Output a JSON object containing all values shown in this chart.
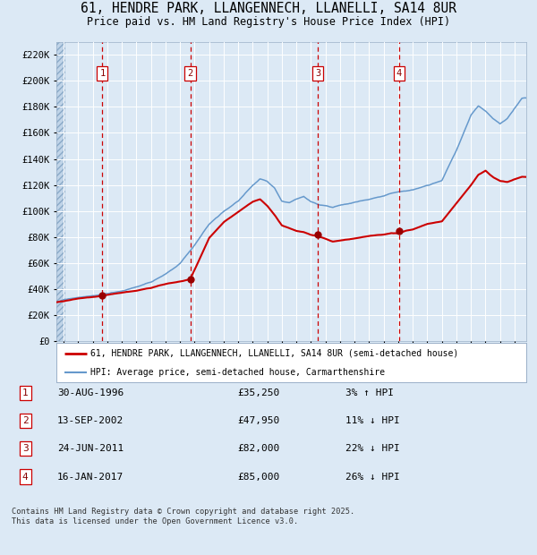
{
  "title_line1": "61, HENDRE PARK, LLANGENNECH, LLANELLI, SA14 8UR",
  "title_line2": "Price paid vs. HM Land Registry's House Price Index (HPI)",
  "background_color": "#dce9f5",
  "plot_bg_color": "#dce9f5",
  "grid_color": "#ffffff",
  "red_line_color": "#cc0000",
  "blue_line_color": "#6699cc",
  "dashed_line_color": "#cc0000",
  "marker_color": "#990000",
  "transactions": [
    {
      "date_x": 1996.66,
      "price": 35250,
      "label": "1"
    },
    {
      "date_x": 2002.7,
      "price": 47950,
      "label": "2"
    },
    {
      "date_x": 2011.48,
      "price": 82000,
      "label": "3"
    },
    {
      "date_x": 2017.04,
      "price": 85000,
      "label": "4"
    }
  ],
  "table_rows": [
    {
      "num": "1",
      "date": "30-AUG-1996",
      "price": "£35,250",
      "pct": "3% ↑ HPI"
    },
    {
      "num": "2",
      "date": "13-SEP-2002",
      "price": "£47,950",
      "pct": "11% ↓ HPI"
    },
    {
      "num": "3",
      "date": "24-JUN-2011",
      "price": "£82,000",
      "pct": "22% ↓ HPI"
    },
    {
      "num": "4",
      "date": "16-JAN-2017",
      "price": "£85,000",
      "pct": "26% ↓ HPI"
    }
  ],
  "footer": "Contains HM Land Registry data © Crown copyright and database right 2025.\nThis data is licensed under the Open Government Licence v3.0.",
  "legend_red": "61, HENDRE PARK, LLANGENNECH, LLANELLI, SA14 8UR (semi-detached house)",
  "legend_blue": "HPI: Average price, semi-detached house, Carmarthenshire",
  "ylim": [
    0,
    230000
  ],
  "xlim_start": 1993.5,
  "xlim_end": 2025.8,
  "ytick_step": 20000,
  "xtick_start": 1994,
  "xtick_end": 2026
}
